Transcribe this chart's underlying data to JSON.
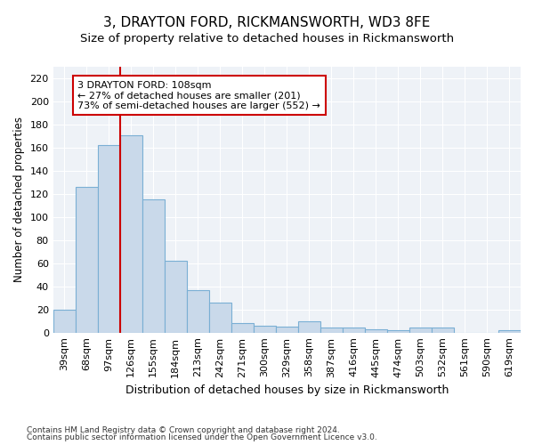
{
  "title1": "3, DRAYTON FORD, RICKMANSWORTH, WD3 8FE",
  "title2": "Size of property relative to detached houses in Rickmansworth",
  "xlabel": "Distribution of detached houses by size in Rickmansworth",
  "ylabel": "Number of detached properties",
  "categories": [
    "39sqm",
    "68sqm",
    "97sqm",
    "126sqm",
    "155sqm",
    "184sqm",
    "213sqm",
    "242sqm",
    "271sqm",
    "300sqm",
    "329sqm",
    "358sqm",
    "387sqm",
    "416sqm",
    "445sqm",
    "474sqm",
    "503sqm",
    "532sqm",
    "561sqm",
    "590sqm",
    "619sqm"
  ],
  "values": [
    20,
    126,
    162,
    171,
    115,
    62,
    37,
    26,
    8,
    6,
    5,
    10,
    4,
    4,
    3,
    2,
    4,
    4,
    0,
    0,
    2
  ],
  "bar_color": "#c9d9ea",
  "bar_edge_color": "#7aafd4",
  "vline_x_index": 2.5,
  "vline_color": "#cc0000",
  "annotation_line1": "3 DRAYTON FORD: 108sqm",
  "annotation_line2": "← 27% of detached houses are smaller (201)",
  "annotation_line3": "73% of semi-detached houses are larger (552) →",
  "annotation_box_edge": "#cc0000",
  "ylim": [
    0,
    230
  ],
  "yticks": [
    0,
    20,
    40,
    60,
    80,
    100,
    120,
    140,
    160,
    180,
    200,
    220
  ],
  "footnote1": "Contains HM Land Registry data © Crown copyright and database right 2024.",
  "footnote2": "Contains public sector information licensed under the Open Government Licence v3.0.",
  "bg_color": "#eef2f7",
  "title1_fontsize": 11,
  "title2_fontsize": 9.5,
  "xlabel_fontsize": 9,
  "ylabel_fontsize": 8.5,
  "annotation_fontsize": 8,
  "tick_fontsize": 8,
  "footnote_fontsize": 6.5
}
